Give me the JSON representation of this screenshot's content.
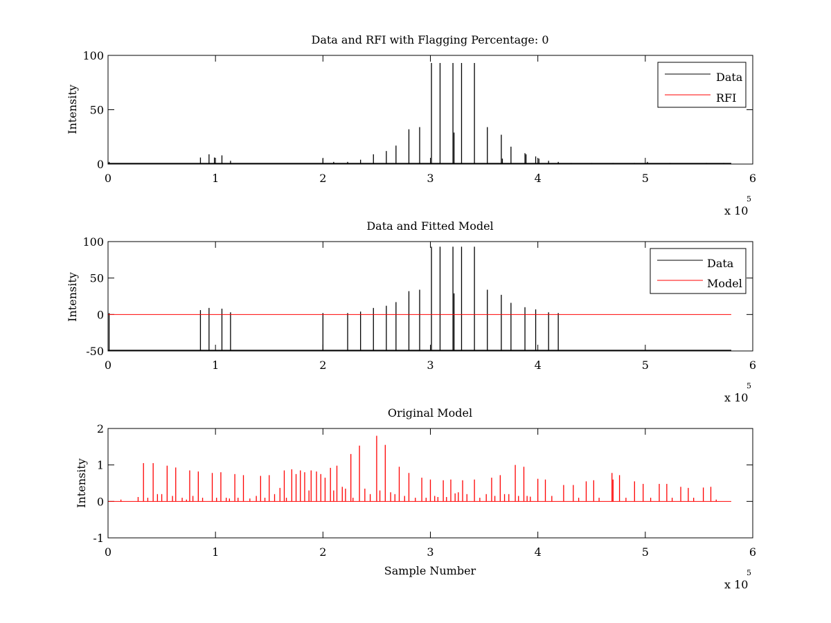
{
  "figure": {
    "background": "#ffffff",
    "axis_color": "#000000",
    "data_color": "#000000",
    "model_color": "#ff0000",
    "x_exponent_base": "x 10",
    "x_exponent_power": "5"
  },
  "chart_data": [
    {
      "type": "line",
      "title": "Data and RFI with Flagging Percentage: 0",
      "xlabel": "",
      "ylabel": "Intensity",
      "xlim": [
        0,
        6
      ],
      "ylim": [
        0,
        100
      ],
      "x_ticks": [
        "0",
        "1",
        "2",
        "3",
        "4",
        "5",
        "6"
      ],
      "y_ticks": [
        "0",
        "50",
        "100"
      ],
      "x_scale_note": "x 10^5",
      "grid": false,
      "legend": {
        "position": "top-right",
        "entries": [
          "Data",
          "RFI"
        ]
      },
      "series": [
        {
          "name": "Data",
          "color": "#000000",
          "spikes": [
            [
              0.01,
              2
            ],
            [
              0.86,
              6
            ],
            [
              0.94,
              9
            ],
            [
              0.99,
              6
            ],
            [
              1.06,
              8
            ],
            [
              1.14,
              3
            ],
            [
              2.0,
              5
            ],
            [
              2.1,
              2
            ],
            [
              2.23,
              2
            ],
            [
              2.35,
              4
            ],
            [
              2.47,
              9
            ],
            [
              2.59,
              12
            ],
            [
              2.68,
              17
            ],
            [
              2.8,
              32
            ],
            [
              2.9,
              34
            ],
            [
              3.01,
              93
            ],
            [
              3.09,
              93
            ],
            [
              3.21,
              93
            ],
            [
              3.22,
              29
            ],
            [
              3.29,
              93
            ],
            [
              3.41,
              93
            ],
            [
              3.53,
              34
            ],
            [
              3.66,
              27
            ],
            [
              3.67,
              5
            ],
            [
              3.75,
              16
            ],
            [
              3.88,
              10
            ],
            [
              3.89,
              9
            ],
            [
              3.98,
              7
            ],
            [
              4.01,
              5
            ],
            [
              4.1,
              3
            ],
            [
              4.19,
              2
            ],
            [
              4.31,
              1
            ],
            [
              4.5,
              1
            ],
            [
              4.7,
              1
            ],
            [
              4.9,
              1
            ],
            [
              5.02,
              2
            ],
            [
              5.23,
              1
            ],
            [
              5.57,
              1
            ],
            [
              5.73,
              1
            ]
          ]
        },
        {
          "name": "RFI",
          "color": "#ff0000",
          "spikes": []
        }
      ]
    },
    {
      "type": "line",
      "title": "Data and Fitted Model",
      "xlabel": "",
      "ylabel": "Intensity",
      "xlim": [
        0,
        6
      ],
      "ylim": [
        -50,
        100
      ],
      "x_ticks": [
        "0",
        "1",
        "2",
        "3",
        "4",
        "5",
        "6"
      ],
      "y_ticks": [
        "-50",
        "0",
        "50",
        "100"
      ],
      "x_scale_note": "x 10^5",
      "grid": false,
      "legend": {
        "position": "top-right",
        "entries": [
          "Data",
          "Model"
        ]
      },
      "series": [
        {
          "name": "Data",
          "color": "#000000",
          "spikes": [
            [
              0.01,
              2
            ],
            [
              0.86,
              6
            ],
            [
              0.94,
              9
            ],
            [
              1.06,
              8
            ],
            [
              1.14,
              3
            ],
            [
              2.0,
              2
            ],
            [
              2.23,
              2
            ],
            [
              2.35,
              4
            ],
            [
              2.47,
              9
            ],
            [
              2.59,
              12
            ],
            [
              2.68,
              17
            ],
            [
              2.8,
              32
            ],
            [
              2.9,
              34
            ],
            [
              3.01,
              93
            ],
            [
              3.09,
              93
            ],
            [
              3.21,
              93
            ],
            [
              3.22,
              29
            ],
            [
              3.29,
              93
            ],
            [
              3.41,
              93
            ],
            [
              3.53,
              34
            ],
            [
              3.66,
              27
            ],
            [
              3.75,
              16
            ],
            [
              3.88,
              10
            ],
            [
              3.98,
              7
            ],
            [
              4.1,
              3
            ],
            [
              4.19,
              2
            ]
          ]
        },
        {
          "name": "Model",
          "color": "#ff0000",
          "baseline": 0,
          "x_end": 5.8,
          "spikes": []
        }
      ]
    },
    {
      "type": "line",
      "title": "Original Model",
      "xlabel": "Sample Number",
      "ylabel": "Intensity",
      "xlim": [
        0,
        6
      ],
      "ylim": [
        -1,
        2
      ],
      "x_ticks": [
        "0",
        "1",
        "2",
        "3",
        "4",
        "5",
        "6"
      ],
      "y_ticks": [
        "-1",
        "0",
        "1",
        "2"
      ],
      "x_scale_note": "x 10^5",
      "grid": false,
      "series": [
        {
          "color": "#ff0000",
          "baseline": 0,
          "x_end": 5.8,
          "spikes": [
            [
              0.12,
              0.05
            ],
            [
              0.28,
              0.12
            ],
            [
              0.33,
              1.05
            ],
            [
              0.37,
              0.1
            ],
            [
              0.42,
              1.05
            ],
            [
              0.46,
              0.2
            ],
            [
              0.5,
              0.2
            ],
            [
              0.55,
              0.98
            ],
            [
              0.6,
              0.15
            ],
            [
              0.63,
              0.93
            ],
            [
              0.69,
              0.1
            ],
            [
              0.73,
              0.05
            ],
            [
              0.76,
              0.85
            ],
            [
              0.79,
              0.15
            ],
            [
              0.84,
              0.82
            ],
            [
              0.88,
              0.1
            ],
            [
              0.97,
              0.78
            ],
            [
              1.01,
              0.1
            ],
            [
              1.05,
              0.8
            ],
            [
              1.1,
              0.1
            ],
            [
              1.13,
              0.08
            ],
            [
              1.18,
              0.75
            ],
            [
              1.21,
              0.1
            ],
            [
              1.26,
              0.72
            ],
            [
              1.32,
              0.08
            ],
            [
              1.38,
              0.15
            ],
            [
              1.42,
              0.7
            ],
            [
              1.46,
              0.1
            ],
            [
              1.5,
              0.72
            ],
            [
              1.55,
              0.2
            ],
            [
              1.6,
              0.37
            ],
            [
              1.64,
              0.85
            ],
            [
              1.66,
              0.1
            ],
            [
              1.71,
              0.88
            ],
            [
              1.75,
              0.75
            ],
            [
              1.79,
              0.85
            ],
            [
              1.83,
              0.8
            ],
            [
              1.87,
              0.3
            ],
            [
              1.89,
              0.85
            ],
            [
              1.94,
              0.82
            ],
            [
              1.98,
              0.75
            ],
            [
              2.02,
              0.65
            ],
            [
              2.07,
              0.92
            ],
            [
              2.1,
              0.3
            ],
            [
              2.13,
              0.98
            ],
            [
              2.18,
              0.4
            ],
            [
              2.21,
              0.35
            ],
            [
              2.26,
              1.3
            ],
            [
              2.28,
              0.1
            ],
            [
              2.34,
              1.53
            ],
            [
              2.39,
              0.35
            ],
            [
              2.44,
              0.2
            ],
            [
              2.5,
              1.8
            ],
            [
              2.53,
              0.3
            ],
            [
              2.58,
              1.55
            ],
            [
              2.63,
              0.25
            ],
            [
              2.67,
              0.2
            ],
            [
              2.71,
              0.95
            ],
            [
              2.76,
              0.15
            ],
            [
              2.8,
              0.78
            ],
            [
              2.86,
              0.1
            ],
            [
              2.92,
              0.65
            ],
            [
              2.96,
              0.1
            ],
            [
              3.0,
              0.6
            ],
            [
              3.04,
              0.15
            ],
            [
              3.07,
              0.12
            ],
            [
              3.12,
              0.58
            ],
            [
              3.15,
              0.12
            ],
            [
              3.19,
              0.6
            ],
            [
              3.23,
              0.22
            ],
            [
              3.26,
              0.25
            ],
            [
              3.3,
              0.58
            ],
            [
              3.34,
              0.2
            ],
            [
              3.41,
              0.6
            ],
            [
              3.46,
              0.1
            ],
            [
              3.52,
              0.2
            ],
            [
              3.57,
              0.65
            ],
            [
              3.6,
              0.15
            ],
            [
              3.65,
              0.72
            ],
            [
              3.69,
              0.2
            ],
            [
              3.73,
              0.2
            ],
            [
              3.79,
              1.0
            ],
            [
              3.82,
              0.15
            ],
            [
              3.87,
              0.95
            ],
            [
              3.9,
              0.15
            ],
            [
              3.93,
              0.13
            ],
            [
              4.0,
              0.62
            ],
            [
              4.07,
              0.6
            ],
            [
              4.13,
              0.15
            ],
            [
              4.24,
              0.45
            ],
            [
              4.33,
              0.45
            ],
            [
              4.38,
              0.1
            ],
            [
              4.45,
              0.55
            ],
            [
              4.52,
              0.58
            ],
            [
              4.57,
              0.1
            ],
            [
              4.69,
              0.78
            ],
            [
              4.7,
              0.6
            ],
            [
              4.76,
              0.72
            ],
            [
              4.82,
              0.1
            ],
            [
              4.9,
              0.55
            ],
            [
              4.98,
              0.48
            ],
            [
              5.05,
              0.1
            ],
            [
              5.13,
              0.48
            ],
            [
              5.2,
              0.48
            ],
            [
              5.25,
              0.1
            ],
            [
              5.33,
              0.4
            ],
            [
              5.4,
              0.37
            ],
            [
              5.45,
              0.1
            ],
            [
              5.54,
              0.38
            ],
            [
              5.61,
              0.4
            ],
            [
              5.66,
              0.05
            ]
          ]
        }
      ]
    }
  ]
}
